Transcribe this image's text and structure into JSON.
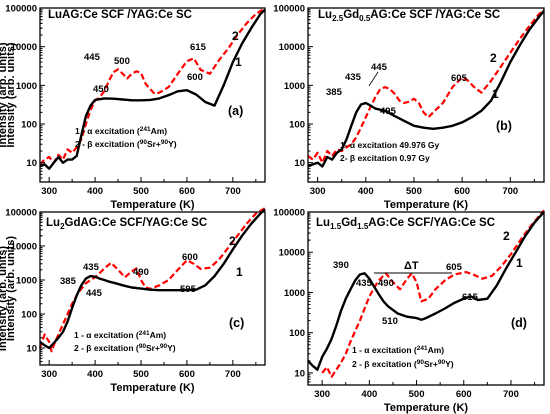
{
  "chart_data": [
    {
      "type": "line",
      "panel": "(a)",
      "title_parts": [
        "LuAG:Ce SCF /YAG:Ce SC"
      ],
      "xlabel": "Temperature (K)",
      "ylabel": "Intensity (arb. units)",
      "xlim": [
        280,
        770
      ],
      "ylim_log10": [
        0.5,
        5
      ],
      "xticks": [
        "300",
        "400",
        "500",
        "600",
        "700"
      ],
      "yticks": [
        "10",
        "100",
        "1000",
        "10000",
        "100000"
      ],
      "series": [
        {
          "name": "1",
          "color": "#000000",
          "style": "solid",
          "x": [
            280,
            290,
            300,
            310,
            320,
            330,
            340,
            350,
            360,
            370,
            380,
            390,
            400,
            420,
            440,
            460,
            480,
            500,
            520,
            540,
            560,
            580,
            600,
            620,
            640,
            660,
            680,
            700,
            720,
            740,
            760,
            770
          ],
          "y": [
            8,
            9,
            7,
            10,
            14,
            10,
            12,
            12,
            15,
            50,
            160,
            300,
            420,
            460,
            450,
            430,
            410,
            410,
            420,
            460,
            560,
            700,
            750,
            580,
            370,
            300,
            1000,
            4000,
            12000,
            30000,
            70000,
            90000
          ]
        },
        {
          "name": "2",
          "color": "#ff0000",
          "style": "dashed",
          "x": [
            280,
            290,
            300,
            310,
            320,
            330,
            340,
            350,
            360,
            370,
            380,
            390,
            400,
            410,
            420,
            430,
            440,
            450,
            460,
            470,
            480,
            490,
            500,
            510,
            520,
            530,
            540,
            560,
            580,
            600,
            615,
            630,
            650,
            670,
            690,
            710,
            730,
            750,
            770
          ],
          "y": [
            9,
            12,
            14,
            10,
            16,
            12,
            22,
            18,
            25,
            40,
            100,
            230,
            400,
            500,
            700,
            1300,
            2200,
            2600,
            2000,
            1500,
            2000,
            2300,
            2100,
            1100,
            800,
            600,
            650,
            900,
            2000,
            4200,
            5000,
            2500,
            2000,
            4500,
            9000,
            20000,
            40000,
            70000,
            100000
          ]
        }
      ],
      "peak_labels": [
        "445",
        "500",
        "615",
        "450",
        "600"
      ],
      "curve_labels": [
        "2",
        "1"
      ],
      "legend": [
        {
          "prefix": "1 - α excitation (",
          "sup": "241",
          "suffix": "Am)"
        },
        {
          "prefix": "2 - β excitation (",
          "sup": "90",
          "mid": "Sr+",
          "sup2": "90",
          "suffix": "Y)"
        }
      ]
    },
    {
      "type": "line",
      "panel": "(b)",
      "title_parts": [
        "Lu",
        "2.5",
        "Gd",
        "0.5",
        "AG:Ce SCF /YAG:Ce SC"
      ],
      "xlabel": "Temperature (K)",
      "ylabel": "Intensity (arb. units)",
      "xlim": [
        280,
        770
      ],
      "ylim_log10": [
        0.5,
        5
      ],
      "xticks": [
        "300",
        "400",
        "500",
        "600",
        "700"
      ],
      "yticks": [
        "10",
        "100",
        "1000",
        "10000",
        "100000"
      ],
      "series": [
        {
          "name": "1",
          "color": "#000000",
          "style": "solid",
          "x": [
            280,
            290,
            300,
            310,
            320,
            330,
            340,
            350,
            360,
            370,
            380,
            390,
            400,
            410,
            420,
            440,
            460,
            480,
            500,
            520,
            540,
            560,
            580,
            600,
            620,
            640,
            660,
            680,
            700,
            720,
            740,
            760,
            770
          ],
          "y": [
            8,
            9,
            10,
            8,
            14,
            12,
            18,
            22,
            40,
            90,
            200,
            320,
            350,
            300,
            250,
            220,
            160,
            120,
            90,
            80,
            75,
            80,
            90,
            110,
            150,
            220,
            400,
            1200,
            4000,
            11000,
            28000,
            60000,
            85000
          ]
        },
        {
          "name": "2",
          "color": "#ff0000",
          "style": "dashed",
          "x": [
            280,
            290,
            300,
            310,
            320,
            330,
            340,
            350,
            360,
            370,
            380,
            390,
            400,
            410,
            420,
            430,
            440,
            450,
            460,
            470,
            480,
            490,
            500,
            510,
            520,
            530,
            540,
            560,
            580,
            600,
            610,
            625,
            640,
            660,
            680,
            700,
            720,
            740,
            760,
            770
          ],
          "y": [
            15,
            12,
            18,
            10,
            20,
            15,
            22,
            20,
            25,
            30,
            45,
            80,
            150,
            280,
            500,
            800,
            900,
            800,
            600,
            400,
            350,
            380,
            450,
            350,
            200,
            150,
            200,
            350,
            900,
            1600,
            1400,
            900,
            650,
            1300,
            3000,
            7000,
            16000,
            35000,
            70000,
            90000
          ]
        }
      ],
      "peak_labels": [
        "385",
        "435",
        "445",
        "495",
        "605"
      ],
      "curve_labels": [
        "2",
        "1"
      ],
      "legend": [
        {
          "text": "1- α excitation 49.976 Gy"
        },
        {
          "text": "2- β excitation 0.97 Gy"
        }
      ]
    },
    {
      "type": "line",
      "panel": "(c)",
      "title_parts": [
        "Lu",
        "2",
        "GdAG:Ce SCF/YAG:Ce SC"
      ],
      "xlabel": "Temperature (K)",
      "ylabel": "Intensity (arb. units)",
      "xlim": [
        280,
        770
      ],
      "ylim_log10": [
        0.5,
        5
      ],
      "xticks": [
        "300",
        "400",
        "500",
        "600",
        "700"
      ],
      "yticks": [
        "10",
        "100",
        "1000",
        "10000",
        "100000"
      ],
      "series": [
        {
          "name": "1",
          "color": "#000000",
          "style": "solid",
          "x": [
            280,
            290,
            300,
            310,
            320,
            330,
            340,
            350,
            360,
            370,
            380,
            390,
            400,
            410,
            420,
            430,
            445,
            460,
            480,
            500,
            520,
            540,
            560,
            580,
            600,
            620,
            640,
            660,
            680,
            700,
            720,
            740,
            760,
            770
          ],
          "y": [
            15,
            12,
            10,
            14,
            20,
            30,
            60,
            150,
            350,
            700,
            1100,
            1300,
            1250,
            1100,
            1000,
            900,
            800,
            700,
            600,
            560,
            520,
            500,
            500,
            500,
            500,
            520,
            700,
            1300,
            3000,
            8000,
            20000,
            45000,
            90000,
            120000
          ]
        },
        {
          "name": "2",
          "color": "#ff0000",
          "style": "dashed",
          "x": [
            280,
            290,
            300,
            305,
            310,
            320,
            330,
            340,
            350,
            360,
            370,
            380,
            390,
            400,
            410,
            420,
            435,
            450,
            465,
            480,
            490,
            500,
            510,
            520,
            540,
            560,
            580,
            600,
            615,
            630,
            650,
            670,
            690,
            710,
            730,
            750,
            770
          ],
          "y": [
            10,
            25,
            15,
            8,
            12,
            25,
            50,
            100,
            200,
            350,
            550,
            800,
            1000,
            1200,
            1600,
            2200,
            3200,
            2000,
            1200,
            1800,
            2200,
            1000,
            600,
            550,
            700,
            1000,
            2000,
            3800,
            3000,
            2100,
            2300,
            4000,
            9000,
            20000,
            45000,
            90000,
            130000
          ]
        }
      ],
      "peak_labels": [
        "385",
        "435",
        "445",
        "490",
        "600",
        "595"
      ],
      "curve_labels": [
        "2",
        "1"
      ],
      "legend": [
        {
          "prefix": "1 - α excitation (",
          "sup": "241",
          "suffix": "Am)"
        },
        {
          "prefix": "2 - β excitation (",
          "sup": "90",
          "mid": "Sr+",
          "sup2": "90",
          "suffix": "Y)"
        }
      ]
    },
    {
      "type": "line",
      "panel": "(d)",
      "title_parts": [
        "Lu",
        "1.5",
        "Gd",
        "1.5",
        "AG:Ce SCF/YAG:Ce SC"
      ],
      "xlabel": "Temperature (K)",
      "ylabel": "Intensity (arb. units)",
      "xlim": [
        270,
        770
      ],
      "ylim_log10": [
        0.7,
        5
      ],
      "xticks": [
        "300",
        "400",
        "500",
        "600",
        "700"
      ],
      "yticks": [
        "10",
        "100",
        "1000",
        "10000",
        "100000"
      ],
      "series": [
        {
          "name": "1",
          "color": "#000000",
          "style": "solid",
          "x": [
            270,
            280,
            290,
            300,
            310,
            320,
            330,
            340,
            350,
            360,
            370,
            380,
            390,
            400,
            410,
            420,
            430,
            440,
            460,
            480,
            500,
            510,
            520,
            540,
            560,
            580,
            600,
            615,
            630,
            650,
            670,
            690,
            710,
            730,
            750,
            770
          ],
          "y": [
            20,
            15,
            12,
            25,
            40,
            70,
            150,
            350,
            700,
            1200,
            2000,
            2800,
            3000,
            2200,
            1400,
            900,
            600,
            450,
            300,
            250,
            230,
            210,
            230,
            300,
            400,
            550,
            700,
            800,
            650,
            700,
            1500,
            4000,
            10000,
            25000,
            55000,
            100000
          ]
        },
        {
          "name": "2",
          "color": "#ff0000",
          "style": "dashed",
          "x": [
            300,
            310,
            320,
            330,
            340,
            350,
            360,
            370,
            380,
            390,
            400,
            410,
            420,
            435,
            450,
            465,
            480,
            490,
            500,
            510,
            525,
            540,
            560,
            580,
            605,
            620,
            640,
            660,
            680,
            700,
            720,
            740,
            760,
            770
          ],
          "y": [
            10,
            14,
            8,
            12,
            18,
            30,
            60,
            110,
            200,
            400,
            800,
            1300,
            2000,
            3000,
            1800,
            1200,
            2200,
            3000,
            1800,
            600,
            700,
            1200,
            2000,
            2800,
            3200,
            2800,
            2200,
            2600,
            4500,
            9000,
            20000,
            42000,
            80000,
            110000
          ]
        }
      ],
      "peak_labels": [
        "390",
        "435",
        "490",
        "510",
        "605",
        "615",
        "ΔT"
      ],
      "curve_labels": [
        "2",
        "1"
      ],
      "legend": [
        {
          "prefix": "1 - α excitation (",
          "sup": "241",
          "suffix": "Am)"
        },
        {
          "prefix": "2 - β excitation (",
          "sup": "90",
          "mid": "Sr+",
          "sup2": "90",
          "suffix": "Y)"
        }
      ]
    }
  ]
}
